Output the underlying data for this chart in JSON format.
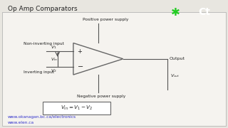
{
  "title": "Op Amp Comparators",
  "bg_color": "#e8e6e0",
  "slide_bg": "#f5f3ef",
  "text_color": "#222222",
  "link_color": "#3333cc",
  "line_color": "#555555",
  "url1": "www.okanagan.bc.ca/electronics",
  "url2": "www.elen.ca",
  "label_nonInv": "Non-inverting input",
  "label_inv": "Inverting input",
  "label_posSupply": "Positive power supply",
  "label_negSupply": "Negative power supply",
  "label_output": "Output",
  "logo_bg": "#1a1a1a",
  "logo_green": "#22cc22",
  "logo_text": "white"
}
